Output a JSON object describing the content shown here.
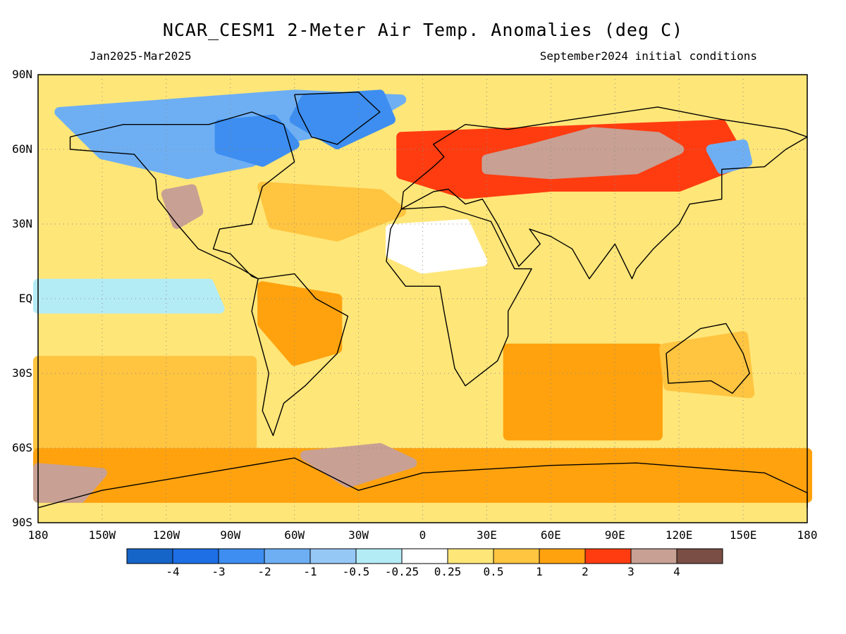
{
  "header": {
    "title": "NCAR_CESM1 2-Meter Air Temp. Anomalies (deg C)",
    "period": "Jan2025-Mar2025",
    "init": "September2024 initial conditions"
  },
  "axes": {
    "lat_labels": [
      {
        "text": "90N",
        "lat": 90
      },
      {
        "text": "60N",
        "lat": 60
      },
      {
        "text": "30N",
        "lat": 30
      },
      {
        "text": "EQ",
        "lat": 0
      },
      {
        "text": "30S",
        "lat": -30
      },
      {
        "text": "60S",
        "lat": -60
      },
      {
        "text": "90S",
        "lat": -90
      }
    ],
    "lon_labels": [
      {
        "text": "180",
        "lon": -180
      },
      {
        "text": "150W",
        "lon": -150
      },
      {
        "text": "120W",
        "lon": -120
      },
      {
        "text": "90W",
        "lon": -90
      },
      {
        "text": "60W",
        "lon": -60
      },
      {
        "text": "30W",
        "lon": -30
      },
      {
        "text": "0",
        "lon": 0
      },
      {
        "text": "30E",
        "lon": 30
      },
      {
        "text": "60E",
        "lon": 60
      },
      {
        "text": "90E",
        "lon": 90
      },
      {
        "text": "120E",
        "lon": 120
      },
      {
        "text": "150E",
        "lon": 150
      },
      {
        "text": "180",
        "lon": 180
      }
    ]
  },
  "colorbar": {
    "colors": [
      "#1565c8",
      "#1e6fe6",
      "#3d8ef0",
      "#6eaff4",
      "#96c8f6",
      "#b4ecf6",
      "#ffffff",
      "#ffe678",
      "#ffc440",
      "#ffa20e",
      "#ff3c10",
      "#c8a094",
      "#7a4e44"
    ],
    "ticks": [
      "-4",
      "-3",
      "-2",
      "-1",
      "-0.5",
      "-0.25",
      "0.25",
      "0.5",
      "1",
      "2",
      "3",
      "4"
    ]
  },
  "map_data": {
    "projection": "equirectangular",
    "lon_range": [
      -180,
      180
    ],
    "lat_range": [
      -90,
      90
    ],
    "background_level": 7,
    "regions": [
      {
        "name": "north-atlantic-warm",
        "level": 8,
        "poly": [
          [
            -75,
            45
          ],
          [
            -20,
            42
          ],
          [
            -10,
            35
          ],
          [
            -40,
            25
          ],
          [
            -70,
            30
          ]
        ]
      },
      {
        "name": "arctic-canada-cold",
        "level": 3,
        "poly": [
          [
            -170,
            75
          ],
          [
            -60,
            82
          ],
          [
            -10,
            80
          ],
          [
            -30,
            70
          ],
          [
            -60,
            65
          ],
          [
            -80,
            55
          ],
          [
            -110,
            50
          ],
          [
            -150,
            58
          ]
        ]
      },
      {
        "name": "greenland-cold",
        "level": 2,
        "poly": [
          [
            -55,
            80
          ],
          [
            -20,
            82
          ],
          [
            -15,
            72
          ],
          [
            -40,
            62
          ],
          [
            -60,
            72
          ]
        ]
      },
      {
        "name": "labrador-cold",
        "level": 2,
        "poly": [
          [
            -95,
            70
          ],
          [
            -70,
            72
          ],
          [
            -60,
            62
          ],
          [
            -75,
            55
          ],
          [
            -95,
            60
          ]
        ]
      },
      {
        "name": "europe-asia-warm",
        "level": 10,
        "poly": [
          [
            -10,
            65
          ],
          [
            140,
            70
          ],
          [
            150,
            55
          ],
          [
            120,
            45
          ],
          [
            60,
            45
          ],
          [
            20,
            42
          ],
          [
            -10,
            50
          ]
        ]
      },
      {
        "name": "siberia-hot",
        "level": 11,
        "poly": [
          [
            30,
            56
          ],
          [
            50,
            60
          ],
          [
            80,
            67
          ],
          [
            110,
            65
          ],
          [
            120,
            60
          ],
          [
            100,
            52
          ],
          [
            60,
            50
          ],
          [
            30,
            52
          ]
        ]
      },
      {
        "name": "western-us-hot",
        "level": 11,
        "poly": [
          [
            -120,
            42
          ],
          [
            -108,
            44
          ],
          [
            -105,
            35
          ],
          [
            -115,
            30
          ]
        ]
      },
      {
        "name": "okhotsk-cold",
        "level": 3,
        "poly": [
          [
            135,
            60
          ],
          [
            150,
            62
          ],
          [
            152,
            55
          ],
          [
            140,
            52
          ]
        ]
      },
      {
        "name": "sahara-cool",
        "level": 6,
        "poly": [
          [
            -15,
            28
          ],
          [
            20,
            30
          ],
          [
            28,
            15
          ],
          [
            0,
            12
          ],
          [
            -15,
            18
          ]
        ]
      },
      {
        "name": "equatorial-pacific-cool",
        "level": 5,
        "poly": [
          [
            -180,
            6
          ],
          [
            -100,
            6
          ],
          [
            -95,
            -4
          ],
          [
            -180,
            -4
          ]
        ]
      },
      {
        "name": "south-pacific-warm",
        "level": 8,
        "poly": [
          [
            -180,
            -25
          ],
          [
            -80,
            -25
          ],
          [
            -80,
            -60
          ],
          [
            -180,
            -60
          ]
        ]
      },
      {
        "name": "southern-ocean-warm",
        "level": 9,
        "poly": [
          [
            -180,
            -62
          ],
          [
            180,
            -62
          ],
          [
            180,
            -80
          ],
          [
            -180,
            -80
          ]
        ]
      },
      {
        "name": "weddell-hot",
        "level": 11,
        "poly": [
          [
            -55,
            -63
          ],
          [
            -20,
            -60
          ],
          [
            -5,
            -66
          ],
          [
            -35,
            -74
          ]
        ]
      },
      {
        "name": "ross-hot",
        "level": 11,
        "poly": [
          [
            -180,
            -68
          ],
          [
            -150,
            -70
          ],
          [
            -160,
            -80
          ],
          [
            -180,
            -80
          ]
        ]
      },
      {
        "name": "indian-ocean-warm",
        "level": 9,
        "poly": [
          [
            40,
            -20
          ],
          [
            110,
            -20
          ],
          [
            110,
            -55
          ],
          [
            40,
            -55
          ]
        ]
      },
      {
        "name": "australia-warm",
        "level": 8,
        "poly": [
          [
            113,
            -20
          ],
          [
            150,
            -15
          ],
          [
            153,
            -38
          ],
          [
            115,
            -35
          ]
        ]
      },
      {
        "name": "south-america-warm",
        "level": 9,
        "poly": [
          [
            -75,
            5
          ],
          [
            -40,
            0
          ],
          [
            -40,
            -20
          ],
          [
            -60,
            -25
          ],
          [
            -75,
            -10
          ]
        ]
      }
    ],
    "coastlines": [
      [
        [
          -165,
          65
        ],
        [
          -140,
          70
        ],
        [
          -100,
          70
        ],
        [
          -80,
          75
        ],
        [
          -65,
          70
        ],
        [
          -60,
          55
        ],
        [
          -75,
          45
        ],
        [
          -80,
          30
        ],
        [
          -95,
          28
        ],
        [
          -98,
          20
        ],
        [
          -90,
          18
        ],
        [
          -80,
          9
        ],
        [
          -77,
          8
        ],
        [
          -85,
          12
        ],
        [
          -105,
          20
        ],
        [
          -115,
          30
        ],
        [
          -124,
          40
        ],
        [
          -125,
          48
        ],
        [
          -135,
          58
        ],
        [
          -165,
          60
        ],
        [
          -165,
          65
        ]
      ],
      [
        [
          -60,
          82
        ],
        [
          -30,
          83
        ],
        [
          -20,
          75
        ],
        [
          -40,
          62
        ],
        [
          -52,
          65
        ],
        [
          -58,
          75
        ],
        [
          -60,
          82
        ]
      ],
      [
        [
          -77,
          8
        ],
        [
          -60,
          10
        ],
        [
          -50,
          0
        ],
        [
          -35,
          -7
        ],
        [
          -40,
          -22
        ],
        [
          -55,
          -35
        ],
        [
          -65,
          -42
        ],
        [
          -70,
          -55
        ],
        [
          -75,
          -45
        ],
        [
          -72,
          -30
        ],
        [
          -80,
          -5
        ],
        [
          -77,
          8
        ]
      ],
      [
        [
          -10,
          36
        ],
        [
          10,
          37
        ],
        [
          32,
          31
        ],
        [
          43,
          12
        ],
        [
          51,
          12
        ],
        [
          40,
          -5
        ],
        [
          40,
          -15
        ],
        [
          35,
          -25
        ],
        [
          20,
          -35
        ],
        [
          15,
          -28
        ],
        [
          10,
          -5
        ],
        [
          8,
          5
        ],
        [
          -8,
          5
        ],
        [
          -17,
          15
        ],
        [
          -15,
          28
        ],
        [
          -10,
          36
        ]
      ],
      [
        [
          -10,
          36
        ],
        [
          -9,
          43
        ],
        [
          -2,
          48
        ],
        [
          5,
          53
        ],
        [
          10,
          57
        ],
        [
          5,
          62
        ],
        [
          20,
          70
        ],
        [
          40,
          68
        ],
        [
          70,
          72
        ],
        [
          110,
          77
        ],
        [
          140,
          72
        ],
        [
          170,
          68
        ],
        [
          180,
          65
        ],
        [
          170,
          60
        ],
        [
          160,
          53
        ],
        [
          140,
          52
        ],
        [
          140,
          40
        ],
        [
          125,
          38
        ],
        [
          120,
          30
        ],
        [
          108,
          20
        ],
        [
          100,
          12
        ],
        [
          98,
          8
        ],
        [
          90,
          22
        ],
        [
          78,
          8
        ],
        [
          70,
          20
        ],
        [
          60,
          25
        ],
        [
          50,
          28
        ],
        [
          55,
          22
        ],
        [
          45,
          13
        ],
        [
          35,
          30
        ],
        [
          28,
          40
        ],
        [
          20,
          38
        ],
        [
          12,
          44
        ],
        [
          5,
          43
        ],
        [
          -10,
          36
        ]
      ],
      [
        [
          114,
          -22
        ],
        [
          130,
          -12
        ],
        [
          142,
          -10
        ],
        [
          150,
          -22
        ],
        [
          153,
          -30
        ],
        [
          145,
          -38
        ],
        [
          135,
          -33
        ],
        [
          115,
          -34
        ],
        [
          114,
          -22
        ]
      ],
      [
        [
          -180,
          -84
        ],
        [
          -150,
          -77
        ],
        [
          -60,
          -64
        ],
        [
          -30,
          -77
        ],
        [
          0,
          -70
        ],
        [
          60,
          -67
        ],
        [
          100,
          -66
        ],
        [
          160,
          -70
        ],
        [
          180,
          -78
        ],
        [
          180,
          -84
        ]
      ]
    ]
  }
}
